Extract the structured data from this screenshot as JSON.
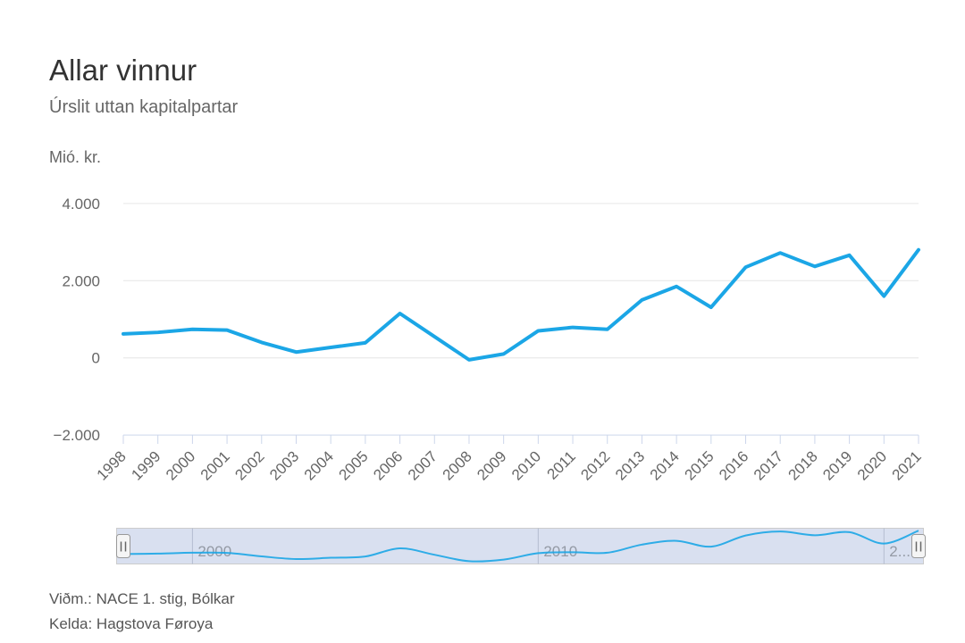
{
  "header": {
    "title": "Allar vinnur",
    "subtitle": "Úrslit uttan kapitalpartar",
    "y_axis_title": "Mió. kr."
  },
  "chart_data": {
    "type": "line",
    "title": "Allar vinnur",
    "subtitle": "Úrslit uttan kapitalpartar",
    "ylabel": "Mió. kr.",
    "xlabel": "",
    "categories": [
      "1998",
      "1999",
      "2000",
      "2001",
      "2002",
      "2003",
      "2004",
      "2005",
      "2006",
      "2007",
      "2008",
      "2009",
      "2010",
      "2011",
      "2012",
      "2013",
      "2014",
      "2015",
      "2016",
      "2017",
      "2018",
      "2019",
      "2020",
      "2021"
    ],
    "values": [
      620,
      660,
      740,
      720,
      400,
      150,
      270,
      390,
      1150,
      550,
      -50,
      100,
      700,
      790,
      740,
      1500,
      1850,
      1310,
      2350,
      2720,
      2370,
      2660,
      1600,
      2800
    ],
    "ylim": [
      -2000,
      4000
    ],
    "ytick_values": [
      4000,
      2000,
      0,
      -2000
    ],
    "ytick_labels": [
      "4.000",
      "2.000",
      "0",
      "−2.000"
    ],
    "grid": true,
    "legend": false,
    "series_color": "#1ba6e6",
    "grid_color": "#e6e6e6",
    "axis_line_color": "#ccd6eb",
    "label_color": "#666666",
    "navigator": {
      "mask_color": "#6685c2",
      "label_color": "#949aa5",
      "ticks": [
        {
          "index": 2,
          "label": "2000"
        },
        {
          "index": 12,
          "label": "2010"
        },
        {
          "index": 22,
          "label": "2..."
        }
      ]
    }
  },
  "footer": {
    "reference": "Viðm.: NACE 1. stig, Bólkar",
    "source": "Kelda: Hagstova Føroya"
  }
}
